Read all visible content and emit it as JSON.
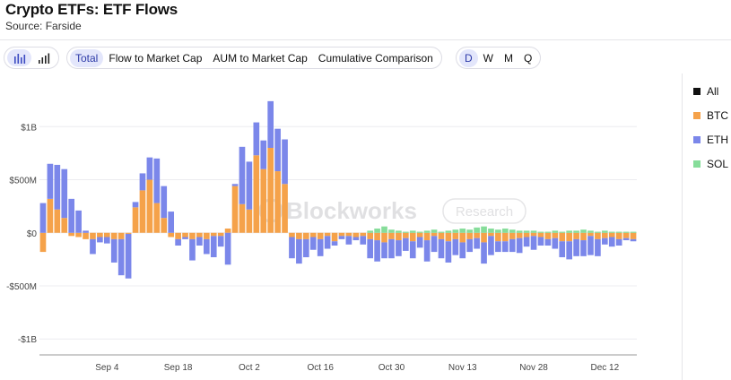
{
  "header": {
    "title": "Crypto ETFs: ETF Flows",
    "source": "Source: Farside"
  },
  "view_toggle": {
    "icons": [
      "bar-chart-icon",
      "line-chart-icon"
    ],
    "active": 0
  },
  "metric_tabs": {
    "items": [
      "Total",
      "Flow to Market Cap",
      "AUM to Market Cap",
      "Cumulative Comparison"
    ],
    "active": 0
  },
  "period_tabs": {
    "items": [
      "D",
      "W",
      "M",
      "Q"
    ],
    "active": 0
  },
  "legend": {
    "items": [
      {
        "label": "All",
        "color": "#111111"
      },
      {
        "label": "BTC",
        "color": "#f5a24a"
      },
      {
        "label": "ETH",
        "color": "#7b87ea"
      },
      {
        "label": "SOL",
        "color": "#86dd9a"
      }
    ]
  },
  "watermark": {
    "brand": "Blockworks",
    "tag": "Research"
  },
  "chart_data": {
    "type": "bar",
    "stacked": true,
    "ylim": [
      -1150,
      1450
    ],
    "yticks": [
      {
        "v": 1000,
        "label": "$1B"
      },
      {
        "v": 500,
        "label": "$500M"
      },
      {
        "v": 0,
        "label": "$0"
      },
      {
        "v": -500,
        "label": "-$500M"
      },
      {
        "v": -1000,
        "label": "-$1B"
      }
    ],
    "xticks": [
      {
        "i": 9,
        "label": "Sep 4"
      },
      {
        "i": 19,
        "label": "Sep 18"
      },
      {
        "i": 29,
        "label": "Oct 2"
      },
      {
        "i": 39,
        "label": "Oct 16"
      },
      {
        "i": 49,
        "label": "Oct 30"
      },
      {
        "i": 59,
        "label": "Nov 13"
      },
      {
        "i": 69,
        "label": "Nov 28"
      },
      {
        "i": 79,
        "label": "Dec 12"
      }
    ],
    "grid": true,
    "legend_position": "right",
    "series": [
      {
        "name": "BTC",
        "color": "#f5a24a",
        "values": [
          -180,
          320,
          220,
          140,
          -30,
          -40,
          -60,
          -60,
          -40,
          -40,
          -60,
          -60,
          -10,
          240,
          400,
          500,
          280,
          140,
          -40,
          -60,
          -40,
          -60,
          -40,
          -60,
          -30,
          -30,
          40,
          440,
          270,
          220,
          730,
          600,
          800,
          580,
          460,
          -40,
          -60,
          -60,
          -40,
          -60,
          -30,
          -80,
          -30,
          -30,
          -40,
          -30,
          -60,
          -70,
          -90,
          -60,
          -70,
          -50,
          -80,
          -40,
          -70,
          -30,
          -60,
          -80,
          -60,
          -90,
          -60,
          -50,
          -90,
          -30,
          -80,
          -80,
          -60,
          -50,
          -40,
          -30,
          -40,
          -60,
          -50,
          -80,
          -80,
          -60,
          -70,
          -30,
          -60,
          -50,
          -40,
          -60,
          -50,
          -60
        ]
      },
      {
        "name": "ETH",
        "color": "#7b87ea",
        "values": [
          280,
          330,
          420,
          460,
          320,
          210,
          20,
          -140,
          -50,
          -60,
          -220,
          -340,
          -420,
          50,
          160,
          210,
          420,
          300,
          200,
          -60,
          -20,
          -200,
          -80,
          -140,
          -200,
          -100,
          -300,
          20,
          540,
          450,
          310,
          270,
          440,
          400,
          420,
          -200,
          -230,
          -170,
          -120,
          -160,
          -120,
          -40,
          -30,
          -80,
          -30,
          -80,
          -180,
          -200,
          -150,
          -180,
          -150,
          -120,
          -160,
          -100,
          -200,
          -150,
          -180,
          -200,
          -150,
          -150,
          -120,
          -100,
          -200,
          -180,
          -100,
          -100,
          -120,
          -140,
          -90,
          -130,
          -80,
          -60,
          -100,
          -150,
          -170,
          -160,
          -150,
          -180,
          -160,
          -60,
          -90,
          -60,
          -20,
          -20
        ]
      },
      {
        "name": "SOL",
        "color": "#86dd9a",
        "values": [
          0,
          0,
          0,
          0,
          0,
          0,
          0,
          0,
          0,
          0,
          0,
          0,
          0,
          0,
          0,
          0,
          0,
          0,
          0,
          0,
          0,
          0,
          0,
          0,
          0,
          0,
          0,
          0,
          0,
          0,
          0,
          0,
          0,
          0,
          0,
          0,
          0,
          0,
          0,
          0,
          0,
          0,
          0,
          0,
          0,
          0,
          20,
          40,
          60,
          30,
          20,
          10,
          20,
          10,
          20,
          30,
          10,
          20,
          30,
          40,
          30,
          50,
          60,
          40,
          30,
          40,
          30,
          20,
          20,
          20,
          10,
          10,
          20,
          10,
          20,
          20,
          30,
          20,
          10,
          20,
          10,
          10,
          10,
          10
        ]
      }
    ]
  }
}
